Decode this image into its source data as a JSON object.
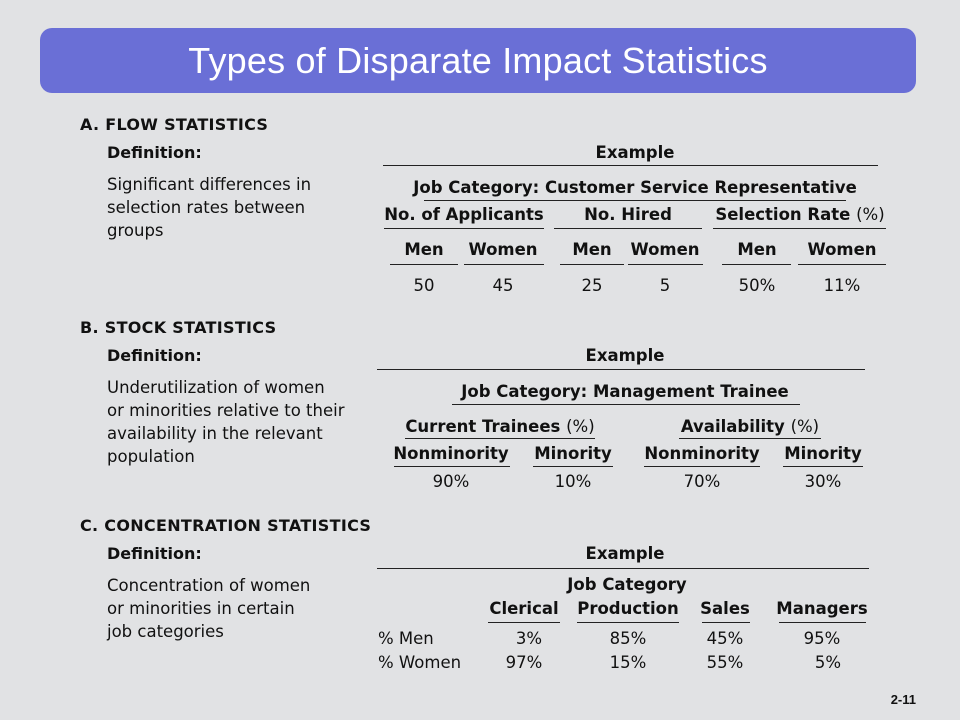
{
  "title": "Types of Disparate Impact Statistics",
  "page_number": "2-11",
  "section_a": {
    "heading": "A. FLOW STATISTICS",
    "definition_label": "Definition:",
    "definition_lines": [
      "Significant differences in",
      "selection rates between",
      "groups"
    ],
    "example_label": "Example",
    "job_category": "Job Category: Customer Service Representative",
    "groups": [
      "No. of Applicants",
      "No. Hired",
      "Selection Rate"
    ],
    "pct_suffix": "(%)",
    "subheaders": [
      "Men",
      "Women",
      "Men",
      "Women",
      "Men",
      "Women"
    ],
    "values": [
      "50",
      "45",
      "25",
      "5",
      "50%",
      "11%"
    ]
  },
  "section_b": {
    "heading": "B. STOCK STATISTICS",
    "definition_label": "Definition:",
    "definition_lines": [
      "Underutilization of women",
      "or minorities relative to their",
      "availability in the relevant",
      "population"
    ],
    "example_label": "Example",
    "job_category": "Job Category: Management Trainee",
    "groups": [
      "Current Trainees",
      "Availability"
    ],
    "pct_suffix": "(%)",
    "subheaders": [
      "Nonminority",
      "Minority",
      "Nonminority",
      "Minority"
    ],
    "values": [
      "90%",
      "10%",
      "70%",
      "30%"
    ]
  },
  "section_c": {
    "heading": "C. CONCENTRATION STATISTICS",
    "definition_label": "Definition:",
    "definition_lines": [
      "Concentration of women",
      "or minorities in certain",
      "job categories"
    ],
    "example_label": "Example",
    "job_category": "Job Category",
    "columns": [
      "Clerical",
      "Production",
      "Sales",
      "Managers"
    ],
    "rows": [
      {
        "label": "% Men",
        "values": [
          "3%",
          "85%",
          "45%",
          "95%"
        ]
      },
      {
        "label": "% Women",
        "values": [
          "97%",
          "15%",
          "55%",
          "5%"
        ]
      }
    ]
  }
}
